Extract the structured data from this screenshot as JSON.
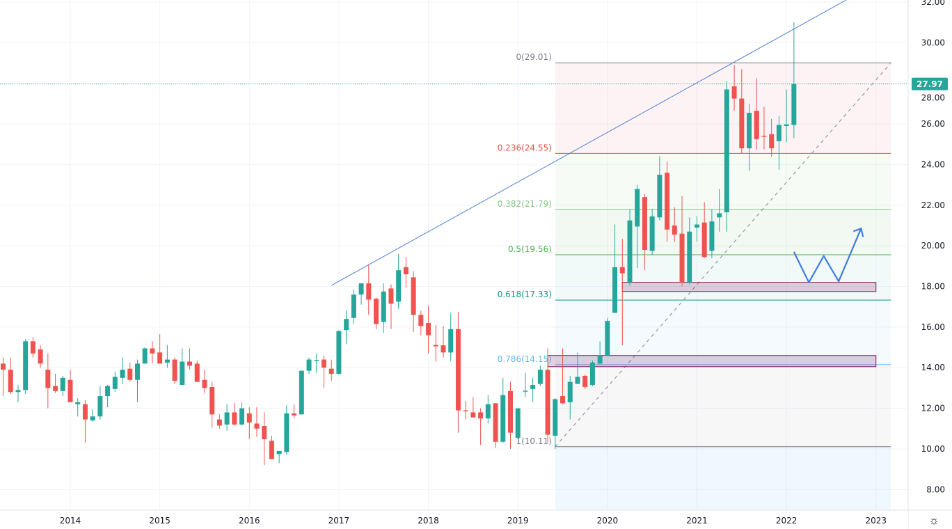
{
  "chart_data": {
    "type": "candlestick",
    "interval": "1M",
    "start_month": "2013-04",
    "columns": [
      "open",
      "high",
      "low",
      "close"
    ],
    "candles": [
      [
        14.2,
        14.5,
        12.6,
        13.9
      ],
      [
        13.9,
        14.5,
        12.7,
        12.8
      ],
      [
        12.8,
        13.15,
        12.3,
        12.9
      ],
      [
        12.9,
        15.4,
        12.7,
        15.3
      ],
      [
        15.3,
        15.5,
        14.5,
        14.7
      ],
      [
        14.9,
        15.1,
        14.0,
        14.2
      ],
      [
        13.9,
        14.7,
        12.0,
        13.0
      ],
      [
        13.1,
        13.7,
        12.75,
        12.85
      ],
      [
        12.85,
        13.6,
        12.6,
        13.5
      ],
      [
        13.4,
        13.9,
        12.3,
        12.3
      ],
      [
        12.2,
        12.5,
        11.6,
        12.3
      ],
      [
        12.2,
        12.4,
        10.3,
        11.45
      ],
      [
        11.4,
        11.95,
        11.35,
        11.6
      ],
      [
        11.6,
        13.1,
        11.45,
        12.6
      ],
      [
        12.6,
        13.15,
        12.05,
        13.1
      ],
      [
        12.95,
        13.8,
        12.8,
        13.55
      ],
      [
        13.5,
        14.5,
        13.2,
        13.9
      ],
      [
        13.95,
        14.25,
        13.3,
        13.4
      ],
      [
        13.4,
        14.4,
        12.3,
        14.2
      ],
      [
        14.2,
        15.0,
        14.2,
        14.95
      ],
      [
        14.95,
        15.3,
        14.2,
        14.7
      ],
      [
        14.75,
        15.65,
        14.2,
        14.2
      ],
      [
        14.25,
        15.1,
        14.0,
        14.4
      ],
      [
        14.4,
        14.5,
        13.2,
        13.35
      ],
      [
        13.15,
        14.95,
        13.15,
        14.3
      ],
      [
        14.3,
        14.95,
        13.9,
        14.1
      ],
      [
        14.2,
        14.35,
        13.3,
        13.3
      ],
      [
        13.4,
        13.9,
        12.75,
        13.0
      ],
      [
        13.05,
        13.3,
        11.05,
        11.7
      ],
      [
        11.45,
        11.7,
        11.0,
        11.15
      ],
      [
        11.2,
        12.2,
        10.9,
        11.8
      ],
      [
        11.8,
        12.25,
        11.15,
        11.2
      ],
      [
        11.2,
        12.3,
        11.15,
        12.0
      ],
      [
        11.75,
        12.05,
        10.5,
        11.3
      ],
      [
        11.25,
        12.05,
        10.6,
        11.0
      ],
      [
        11.13,
        11.8,
        9.2,
        10.48
      ],
      [
        10.4,
        10.65,
        9.5,
        9.5
      ],
      [
        9.75,
        9.9,
        9.3,
        9.9
      ],
      [
        9.85,
        12.15,
        9.7,
        11.75
      ],
      [
        11.75,
        12.2,
        11.5,
        11.65
      ],
      [
        11.7,
        13.85,
        11.7,
        13.85
      ],
      [
        13.85,
        14.5,
        13.7,
        14.4
      ],
      [
        14.35,
        14.7,
        13.75,
        14.38
      ],
      [
        14.4,
        14.6,
        13.0,
        14.0
      ],
      [
        13.95,
        14.4,
        13.35,
        13.7
      ],
      [
        13.7,
        15.85,
        13.65,
        15.8
      ],
      [
        15.85,
        16.8,
        15.15,
        16.4
      ],
      [
        16.45,
        17.85,
        16.15,
        17.6
      ],
      [
        17.6,
        18.15,
        17.1,
        18.15
      ],
      [
        18.15,
        19.05,
        16.6,
        17.35
      ],
      [
        17.4,
        17.45,
        15.9,
        16.15
      ],
      [
        16.25,
        18.15,
        15.7,
        17.75
      ],
      [
        17.9,
        18.1,
        15.9,
        17.15
      ],
      [
        17.25,
        19.6,
        16.9,
        18.8
      ],
      [
        18.95,
        19.45,
        17.95,
        18.6
      ],
      [
        18.45,
        18.75,
        15.75,
        16.6
      ],
      [
        16.6,
        16.8,
        15.6,
        16.05
      ],
      [
        16.2,
        17.05,
        14.7,
        15.6
      ],
      [
        15.12,
        16.1,
        14.3,
        15.05
      ],
      [
        15.1,
        16.05,
        14.5,
        14.75
      ],
      [
        14.75,
        16.7,
        14.3,
        15.9
      ],
      [
        15.9,
        16.75,
        10.8,
        11.9
      ],
      [
        11.9,
        12.35,
        11.45,
        11.85
      ],
      [
        11.8,
        12.55,
        11.55,
        11.55
      ],
      [
        11.8,
        12.0,
        10.2,
        11.5
      ],
      [
        11.5,
        12.65,
        11.25,
        12.2
      ],
      [
        12.25,
        12.25,
        10.05,
        10.35
      ],
      [
        10.35,
        13.5,
        10.3,
        12.65
      ],
      [
        12.85,
        13.3,
        10.0,
        10.8
      ],
      [
        10.55,
        12.0,
        10.55,
        12.0
      ],
      [
        12.83,
        13.75,
        12.55,
        12.87
      ],
      [
        12.95,
        13.5,
        12.3,
        13.15
      ],
      [
        13.2,
        14.1,
        13.1,
        13.9
      ],
      [
        13.9,
        14.95,
        10.3,
        10.7
      ],
      [
        10.65,
        12.5,
        10.0,
        12.45
      ],
      [
        12.6,
        14.95,
        12.2,
        12.25
      ],
      [
        12.3,
        13.6,
        11.45,
        13.3
      ],
      [
        13.2,
        14.75,
        13.2,
        13.55
      ],
      [
        13.6,
        13.65,
        12.95,
        13.05
      ],
      [
        13.15,
        14.35,
        13.1,
        14.25
      ],
      [
        14.2,
        15.3,
        14.15,
        14.6
      ],
      [
        14.6,
        16.45,
        14.6,
        16.3
      ],
      [
        16.7,
        21.05,
        16.7,
        18.95
      ],
      [
        18.95,
        20.35,
        15.1,
        18.65
      ],
      [
        18.2,
        21.8,
        18.05,
        21.25
      ],
      [
        20.95,
        23.0,
        18.9,
        22.8
      ],
      [
        22.4,
        22.55,
        18.8,
        19.8
      ],
      [
        19.75,
        21.8,
        19.55,
        21.45
      ],
      [
        21.4,
        24.4,
        21.25,
        23.5
      ],
      [
        23.6,
        24.15,
        20.2,
        20.8
      ],
      [
        21.0,
        21.9,
        20.2,
        20.55
      ],
      [
        20.6,
        22.45,
        18.0,
        18.2
      ],
      [
        18.2,
        21.4,
        18.1,
        20.7
      ],
      [
        20.9,
        21.45,
        20.2,
        21.05
      ],
      [
        21.15,
        22.15,
        19.4,
        19.45
      ],
      [
        19.75,
        21.8,
        19.4,
        21.2
      ],
      [
        21.4,
        22.8,
        20.7,
        21.6
      ],
      [
        21.65,
        28.1,
        20.7,
        27.7
      ],
      [
        27.85,
        28.9,
        26.65,
        27.25
      ],
      [
        27.25,
        28.7,
        24.55,
        24.8
      ],
      [
        24.8,
        27.0,
        23.7,
        26.55
      ],
      [
        26.65,
        28.25,
        24.75,
        25.25
      ],
      [
        25.42,
        26.85,
        24.75,
        25.38
      ],
      [
        25.5,
        26.25,
        24.4,
        24.8
      ],
      [
        25.15,
        26.4,
        23.75,
        25.95
      ],
      [
        25.9,
        27.7,
        25.1,
        25.98
      ],
      [
        25.95,
        31.0,
        25.3,
        27.97
      ]
    ],
    "last_price": "27.97",
    "y_axis": {
      "range": [
        7.5,
        32.1
      ],
      "ticks": [
        "8.00",
        "10.00",
        "12.00",
        "14.00",
        "16.00",
        "18.00",
        "20.00",
        "22.00",
        "24.00",
        "26.00",
        "28.00",
        "30.00",
        "32.00"
      ]
    },
    "x_axis": {
      "ticks": [
        "2014",
        "2015",
        "2016",
        "2017",
        "2018",
        "2019",
        "2020",
        "2021",
        "2022",
        "2023"
      ]
    },
    "grid": true,
    "colors": {
      "up": "#26a69a",
      "down": "#ef5350",
      "price_line": "#26a69a"
    },
    "fib_retracement": {
      "start": "2019-06",
      "end": "2023-03",
      "levels": [
        {
          "ratio": 0,
          "price": 29.01,
          "label": "0(29.01)",
          "color": "#787b86",
          "fill": "rgba(242,54,69,0.06)"
        },
        {
          "ratio": 0.236,
          "price": 24.55,
          "label": "0.236(24.55)",
          "color": "#e5534b",
          "fill": "rgba(129,199,132,0.07)"
        },
        {
          "ratio": 0.382,
          "price": 21.79,
          "label": "0.382(21.79)",
          "color": "#81c784",
          "fill": "rgba(76,175,80,0.07)"
        },
        {
          "ratio": 0.5,
          "price": 19.56,
          "label": "0.5(19.56)",
          "color": "#4caf50",
          "fill": "rgba(8,153,129,0.05)"
        },
        {
          "ratio": 0.618,
          "price": 17.33,
          "label": "0.618(17.33)",
          "color": "#089981",
          "fill": "rgba(100,181,246,0.07)"
        },
        {
          "ratio": 0.786,
          "price": 14.15,
          "label": "0.786(14.15)",
          "color": "#64b5f6",
          "fill": "rgba(120,123,134,0.06)"
        },
        {
          "ratio": 1,
          "price": 10.11,
          "label": "1(10.11)",
          "color": "#787b86",
          "fill": "rgba(33,150,243,0.07)"
        }
      ]
    },
    "trendline": {
      "from": [
        "2016-12",
        18.05
      ],
      "to": [
        "2022-09",
        32.1
      ],
      "color": "#4a7fd4"
    },
    "diagonal": {
      "from": [
        "2019-06",
        10.11
      ],
      "to": [
        "2023-03",
        29.01
      ],
      "color": "#9598a1"
    },
    "zones": [
      {
        "from": [
          "2019-05",
          14.6
        ],
        "to": [
          "2023-01",
          14.05
        ],
        "color": "#7b1b5a"
      },
      {
        "from": [
          "2020-03",
          18.2
        ],
        "to": [
          "2023-01",
          17.75
        ],
        "color": "#7b1b5a"
      }
    ],
    "projection": {
      "color": "#3d7be0",
      "points": [
        [
          "2022-02",
          19.7
        ],
        [
          "2022-04",
          18.2
        ],
        [
          "2022-06",
          19.5
        ],
        [
          "2022-08",
          18.25
        ],
        [
          "2022-11",
          20.85
        ]
      ]
    }
  },
  "settings_icon": "gear-icon"
}
